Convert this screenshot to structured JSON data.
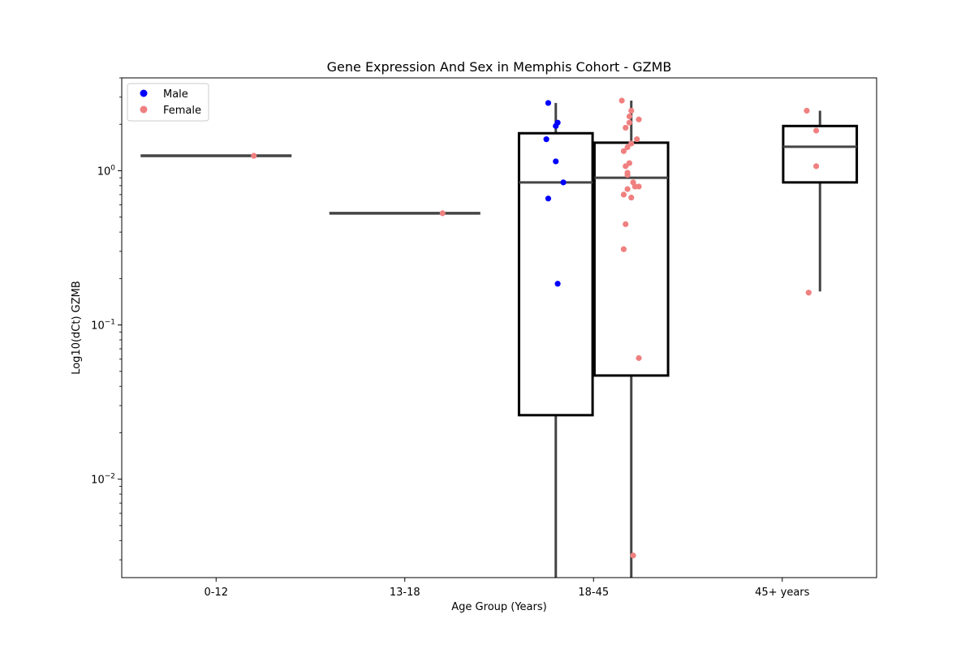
{
  "chart_data": {
    "type": "box",
    "title": "Gene Expression And Sex in Memphis Cohort - GZMB",
    "xlabel": "Age Group (Years)",
    "ylabel": "Log10(dCt) GZMB",
    "yscale": "log",
    "ylim": [
      0.0023,
      4.0
    ],
    "yticks": [
      {
        "value": 0.01,
        "base": "10",
        "exp": "−2"
      },
      {
        "value": 0.1,
        "base": "10",
        "exp": "−1"
      },
      {
        "value": 1,
        "base": "10",
        "exp": "0"
      }
    ],
    "categories": [
      "0-12",
      "13-18",
      "18-45",
      "45+ years"
    ],
    "legend": {
      "position": "top-left",
      "entries": [
        {
          "label": "Male",
          "color": "#0000ff"
        },
        {
          "label": "Female",
          "color": "#f08080"
        }
      ]
    },
    "boxes": [
      {
        "category": "0-12",
        "sex": "Female",
        "min": 1.25,
        "q1": 1.25,
        "median": 1.25,
        "q3": 1.25,
        "max": 1.25
      },
      {
        "category": "13-18",
        "sex": "Female",
        "min": 0.53,
        "q1": 0.53,
        "median": 0.53,
        "q3": 0.53,
        "max": 0.53
      },
      {
        "category": "18-45",
        "sex": "Male",
        "min": 0.0023,
        "q1": 0.026,
        "median": 0.84,
        "q3": 1.75,
        "max": 2.75
      },
      {
        "category": "18-45",
        "sex": "Female",
        "min": 0.0023,
        "q1": 0.047,
        "median": 0.9,
        "q3": 1.52,
        "max": 2.85
      },
      {
        "category": "45+ years",
        "sex": "Female",
        "min": 0.165,
        "q1": 0.84,
        "median": 1.43,
        "q3": 1.95,
        "max": 2.45
      }
    ],
    "points": [
      {
        "category": "0-12",
        "sex": "Female",
        "jitter": 0.2,
        "value": 1.25
      },
      {
        "category": "13-18",
        "sex": "Female",
        "jitter": 0.2,
        "value": 0.53
      },
      {
        "category": "18-45",
        "sex": "Male",
        "jitter": -0.24,
        "value": 2.75
      },
      {
        "category": "18-45",
        "sex": "Male",
        "jitter": -0.19,
        "value": 2.05
      },
      {
        "category": "18-45",
        "sex": "Male",
        "jitter": -0.2,
        "value": 1.95
      },
      {
        "category": "18-45",
        "sex": "Male",
        "jitter": -0.25,
        "value": 1.6
      },
      {
        "category": "18-45",
        "sex": "Male",
        "jitter": -0.2,
        "value": 1.15
      },
      {
        "category": "18-45",
        "sex": "Male",
        "jitter": -0.16,
        "value": 0.84
      },
      {
        "category": "18-45",
        "sex": "Male",
        "jitter": -0.24,
        "value": 0.66
      },
      {
        "category": "18-45",
        "sex": "Male",
        "jitter": -0.19,
        "value": 0.185
      },
      {
        "category": "18-45",
        "sex": "Female",
        "jitter": 0.15,
        "value": 2.85
      },
      {
        "category": "18-45",
        "sex": "Female",
        "jitter": 0.2,
        "value": 2.45
      },
      {
        "category": "18-45",
        "sex": "Female",
        "jitter": 0.19,
        "value": 2.25
      },
      {
        "category": "18-45",
        "sex": "Female",
        "jitter": 0.24,
        "value": 2.15
      },
      {
        "category": "18-45",
        "sex": "Female",
        "jitter": 0.19,
        "value": 2.05
      },
      {
        "category": "18-45",
        "sex": "Female",
        "jitter": 0.17,
        "value": 1.9
      },
      {
        "category": "18-45",
        "sex": "Female",
        "jitter": 0.23,
        "value": 1.6
      },
      {
        "category": "18-45",
        "sex": "Female",
        "jitter": 0.2,
        "value": 1.5
      },
      {
        "category": "18-45",
        "sex": "Female",
        "jitter": 0.18,
        "value": 1.42
      },
      {
        "category": "18-45",
        "sex": "Female",
        "jitter": 0.16,
        "value": 1.34
      },
      {
        "category": "18-45",
        "sex": "Female",
        "jitter": 0.19,
        "value": 1.12
      },
      {
        "category": "18-45",
        "sex": "Female",
        "jitter": 0.17,
        "value": 1.07
      },
      {
        "category": "18-45",
        "sex": "Female",
        "jitter": 0.18,
        "value": 0.97
      },
      {
        "category": "18-45",
        "sex": "Female",
        "jitter": 0.18,
        "value": 0.94
      },
      {
        "category": "18-45",
        "sex": "Female",
        "jitter": 0.21,
        "value": 0.84
      },
      {
        "category": "18-45",
        "sex": "Female",
        "jitter": 0.22,
        "value": 0.79
      },
      {
        "category": "18-45",
        "sex": "Female",
        "jitter": 0.24,
        "value": 0.79
      },
      {
        "category": "18-45",
        "sex": "Female",
        "jitter": 0.18,
        "value": 0.76
      },
      {
        "category": "18-45",
        "sex": "Female",
        "jitter": 0.16,
        "value": 0.7
      },
      {
        "category": "18-45",
        "sex": "Female",
        "jitter": 0.2,
        "value": 0.67
      },
      {
        "category": "18-45",
        "sex": "Female",
        "jitter": 0.17,
        "value": 0.45
      },
      {
        "category": "18-45",
        "sex": "Female",
        "jitter": 0.16,
        "value": 0.31
      },
      {
        "category": "18-45",
        "sex": "Female",
        "jitter": 0.24,
        "value": 0.061
      },
      {
        "category": "18-45",
        "sex": "Female",
        "jitter": 0.21,
        "value": 0.0032
      },
      {
        "category": "45+ years",
        "sex": "Female",
        "jitter": 0.13,
        "value": 2.45
      },
      {
        "category": "45+ years",
        "sex": "Female",
        "jitter": 0.18,
        "value": 1.82
      },
      {
        "category": "45+ years",
        "sex": "Female",
        "jitter": 0.18,
        "value": 1.07
      },
      {
        "category": "45+ years",
        "sex": "Female",
        "jitter": 0.14,
        "value": 0.162
      }
    ]
  }
}
